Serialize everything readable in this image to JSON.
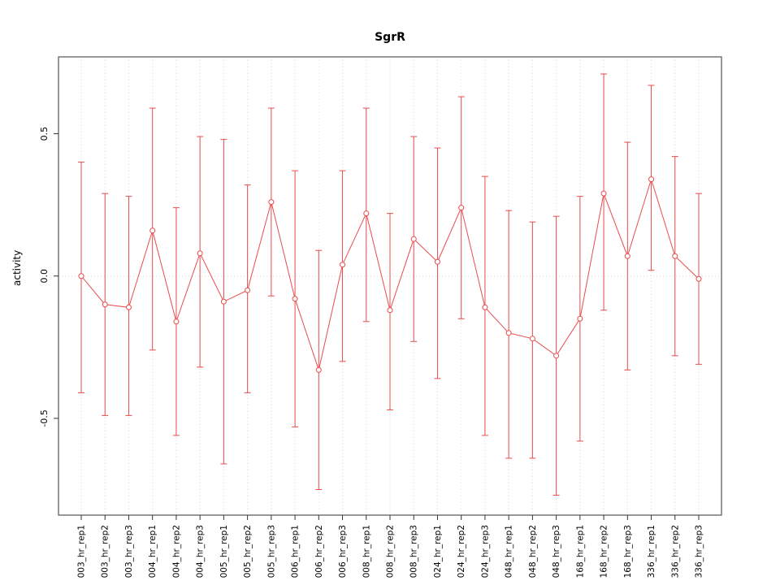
{
  "title": "SgrR",
  "chart_data": {
    "type": "line",
    "title": "SgrR",
    "xlabel": "",
    "ylabel": "activity",
    "categories": [
      "003_hr_rep1",
      "003_hr_rep2",
      "003_hr_rep3",
      "004_hr_rep1",
      "004_hr_rep2",
      "004_hr_rep3",
      "005_hr_rep1",
      "005_hr_rep2",
      "005_hr_rep3",
      "006_hr_rep1",
      "006_hr_rep2",
      "006_hr_rep3",
      "008_hr_rep1",
      "008_hr_rep2",
      "008_hr_rep3",
      "024_hr_rep1",
      "024_hr_rep2",
      "024_hr_rep3",
      "048_hr_rep1",
      "048_hr_rep2",
      "048_hr_rep3",
      "168_hr_rep1",
      "168_hr_rep2",
      "168_hr_rep3",
      "336_hr_rep1",
      "336_hr_rep2",
      "336_hr_rep3"
    ],
    "series": [
      {
        "name": "activity",
        "values": [
          0.0,
          -0.1,
          -0.11,
          0.16,
          -0.16,
          0.08,
          -0.09,
          -0.05,
          0.26,
          -0.08,
          -0.33,
          0.04,
          0.22,
          -0.12,
          0.13,
          0.05,
          0.24,
          -0.11,
          -0.2,
          -0.22,
          -0.28,
          -0.15,
          0.29,
          0.07,
          0.34,
          0.07,
          -0.01
        ],
        "upper": [
          0.4,
          0.29,
          0.28,
          0.59,
          0.24,
          0.49,
          0.48,
          0.32,
          0.59,
          0.37,
          0.09,
          0.37,
          0.59,
          0.22,
          0.49,
          0.45,
          0.63,
          0.35,
          0.23,
          0.19,
          0.21,
          0.28,
          0.71,
          0.47,
          0.67,
          0.42,
          0.29
        ],
        "lower": [
          -0.41,
          -0.49,
          -0.49,
          -0.26,
          -0.56,
          -0.32,
          -0.66,
          -0.41,
          -0.07,
          -0.53,
          -0.75,
          -0.3,
          -0.16,
          -0.47,
          -0.23,
          -0.36,
          -0.15,
          -0.56,
          -0.64,
          -0.64,
          -0.77,
          -0.58,
          -0.12,
          -0.33,
          0.02,
          -0.28,
          -0.31
        ]
      }
    ],
    "yticks": [
      -0.5,
      0.0,
      0.5
    ],
    "ytick_labels": [
      "-0.5",
      "0.0",
      "0.5"
    ],
    "ylim": [
      -0.84,
      0.77
    ],
    "grid": true,
    "legend_position": "none",
    "colors": {
      "series": "#e84c4c",
      "grid": "#d8d8d8",
      "axis": "#333333",
      "background": "#ffffff"
    }
  }
}
